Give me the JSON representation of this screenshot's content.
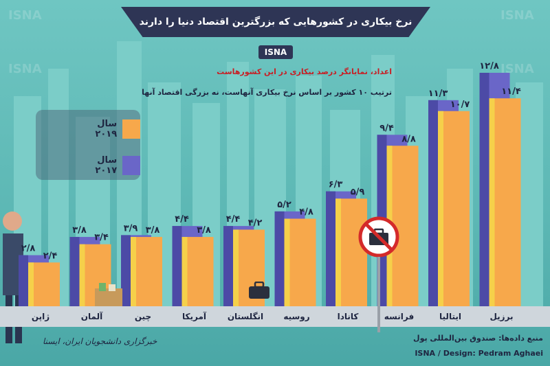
{
  "header": {
    "title": "نرخ بیکاری در کشورهایی که بزرگترین اقتصاد دنیا را دارند",
    "brand": "ISNA",
    "subtitle": "اعداد، نمایانگر درصد بیکاری در این کشورهاست",
    "note": "ترتیب ۱۰ کشور بر اساس نرخ بیکاری آنهاست، نه بزرگی اقتصاد آنها"
  },
  "legend": {
    "items": [
      {
        "label": "سال ۲۰۱۹",
        "color": "#f7a84b"
      },
      {
        "label": "سال ۲۰۱۷",
        "color": "#6a66c8"
      }
    ]
  },
  "footer": {
    "source": "منبع داده‌ها: صندوق بین‌المللی پول",
    "credit": "ISNA / Design: Pedram Aghaei",
    "agency": "خبرگزاری دانشجویان ایران، ایسنا"
  },
  "watermark": "ISNA",
  "chart_data": {
    "type": "bar",
    "categories": [
      "ژاپن",
      "آلمان",
      "چین",
      "آمریکا",
      "انگلستان",
      "روسیه",
      "کانادا",
      "فرانسه",
      "ایتالیا",
      "برزیل"
    ],
    "series": [
      {
        "name": "سال ۲۰۱۷",
        "color": "#6a66c8",
        "values": [
          2.8,
          3.8,
          3.9,
          4.4,
          4.4,
          5.2,
          6.3,
          9.4,
          11.3,
          12.8
        ],
        "labels": [
          "۲/۸",
          "۳/۸",
          "۳/۹",
          "۴/۴",
          "۴/۴",
          "۵/۲",
          "۶/۳",
          "۹/۴",
          "۱۱/۳",
          "۱۲/۸"
        ]
      },
      {
        "name": "سال ۲۰۱۹",
        "color": "#f7a84b",
        "values": [
          2.4,
          3.4,
          3.8,
          3.8,
          4.2,
          4.8,
          5.9,
          8.8,
          10.7,
          11.4
        ],
        "labels": [
          "۲/۴",
          "۳/۴",
          "۳/۸",
          "۳/۸",
          "۴/۲",
          "۴/۸",
          "۵/۹",
          "۸/۸",
          "۱۰/۷",
          "۱۱/۴"
        ]
      }
    ],
    "ylim": [
      0,
      12.8
    ],
    "grid": false
  }
}
